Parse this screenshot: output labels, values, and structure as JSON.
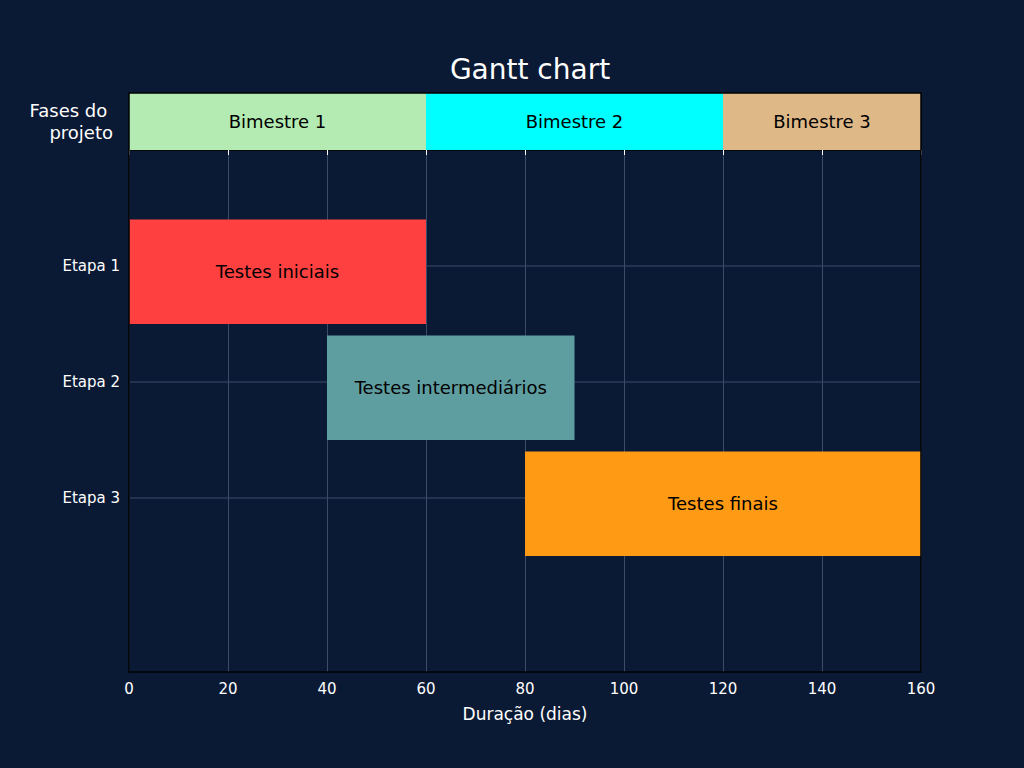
{
  "chart_data": {
    "type": "gantt",
    "title": "Gantt chart",
    "x_label": "Duração (dias)",
    "xlim": [
      0,
      160
    ],
    "xticks": [
      0,
      20,
      40,
      60,
      80,
      100,
      120,
      140,
      160
    ],
    "grid": true,
    "phases": {
      "label": "Fases do projeto",
      "tasks": [
        {
          "name": "Bimestre 1",
          "start": 0,
          "end": 60,
          "color": "#b3ebb3"
        },
        {
          "name": "Bimestre 2",
          "start": 60,
          "end": 120,
          "color": "#00ffff"
        },
        {
          "name": "Bimestre 3",
          "start": 120,
          "end": 160,
          "color": "#deb887"
        }
      ]
    },
    "rows": [
      {
        "category": "Etapa 1",
        "name": "Testes iniciais",
        "start": 0,
        "end": 60,
        "color": "#ff4040"
      },
      {
        "category": "Etapa 2",
        "name": "Testes intermediários",
        "start": 40,
        "end": 90,
        "color": "#5f9ea0"
      },
      {
        "category": "Etapa 3",
        "name": "Testes finais",
        "start": 80,
        "end": 160,
        "color": "#ff9a15"
      }
    ]
  }
}
